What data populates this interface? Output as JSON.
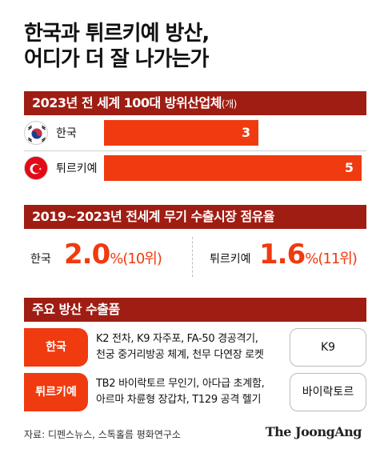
{
  "title": {
    "line1": "한국과 튀르키예 방산,",
    "line2": "어디가 더 잘 나가는가"
  },
  "section1": {
    "heading": "2023년 전 세계 100대 방위산업체",
    "unit": "(개)"
  },
  "section2": {
    "heading": "2019~2023년 전세계 무기 수출시장 점유율"
  },
  "section3": {
    "heading": "주요 방산 수출품"
  },
  "chart_data": [
    {
      "type": "bar",
      "title": "2023년 전 세계 100대 방위산업체(개)",
      "categories": [
        "한국",
        "튀르키예"
      ],
      "values": [
        3,
        5
      ],
      "value_labels": [
        "3",
        "5"
      ],
      "xlim": [
        0,
        5
      ]
    },
    {
      "type": "table",
      "title": "2019~2023년 전세계 무기 수출시장 점유율",
      "rows": [
        {
          "country": "한국",
          "share": "2.0",
          "pct": "%",
          "rank": "(10위)"
        },
        {
          "country": "튀르키예",
          "share": "1.6",
          "pct": "%",
          "rank": "(11위)"
        }
      ]
    }
  ],
  "products": [
    {
      "country": "한국",
      "line1": "K2 전차, K9 자주포, FA-50 경공격기,",
      "line2": "천궁 중거리방공 체계, 천무 다연장 로켓",
      "highlight": "K9"
    },
    {
      "country": "튀르키예",
      "line1": "TB2 바이락토르 무인기, 아다급 초계함,",
      "line2": "아르마 차륜형 장갑차, T129 공격 헬기",
      "highlight": "바이락토르"
    }
  ],
  "footer": {
    "source": "자료: 디펜스뉴스, 스톡홀름 평화연구소",
    "brand": "The JoongAng"
  },
  "colors": {
    "band": "#9f1d13",
    "accent": "#f03a10"
  }
}
